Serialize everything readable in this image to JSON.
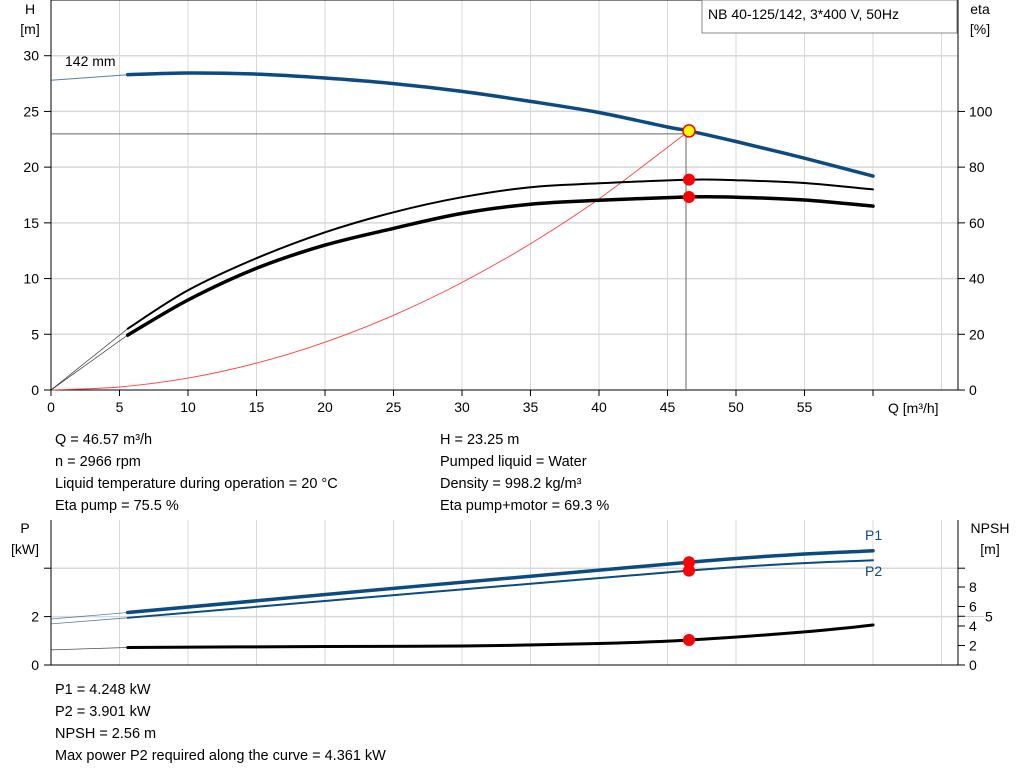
{
  "colors": {
    "head": "#0b4a82",
    "power": "#0b4a82",
    "eta": "#000000",
    "system": "#ff4040",
    "duty_marker": "#ff0000",
    "duty_head_marker": "#ffff00",
    "grid": "#d8d8d8"
  },
  "chart_data": [
    {
      "type": "line",
      "title": "NB 40-125/142, 3*400 V, 50Hz",
      "xlabel": "Q [m³/h]",
      "ylabel_left": [
        "H",
        "[m]"
      ],
      "ylabel_right": [
        "eta",
        "[%]"
      ],
      "xlim": [
        0,
        65
      ],
      "ylim_left": [
        0,
        35
      ],
      "ylim_right": [
        0,
        140
      ],
      "x_ticks": [
        0,
        5,
        10,
        15,
        20,
        25,
        30,
        35,
        40,
        45,
        50,
        55,
        60
      ],
      "x_tick_labels": [
        "0",
        "5",
        "10",
        "15",
        "20",
        "25",
        "30",
        "35",
        "40",
        "45",
        "50",
        "55",
        ""
      ],
      "y_left_ticks": [
        0,
        5,
        10,
        15,
        20,
        25,
        30
      ],
      "y_right_ticks": [
        0,
        20,
        40,
        60,
        80,
        100
      ],
      "grid": true,
      "curve_label": "142 mm",
      "series": [
        {
          "key": "H",
          "axis": "left",
          "x": [
            0,
            5.6,
            10,
            15,
            20,
            25,
            30,
            35,
            40,
            45,
            46.57,
            50,
            55,
            60
          ],
          "y": [
            27.8,
            28.3,
            28.45,
            28.35,
            28.0,
            27.5,
            26.8,
            25.9,
            24.9,
            23.6,
            23.25,
            22.3,
            20.8,
            19.2
          ]
        },
        {
          "key": "eta_pump",
          "axis": "right",
          "x": [
            0,
            5.6,
            10,
            15,
            20,
            25,
            30,
            35,
            40,
            46.57,
            50,
            55,
            60
          ],
          "y": [
            0,
            22,
            35.8,
            47.3,
            56.6,
            63.8,
            69.2,
            72.8,
            74.2,
            75.5,
            75.3,
            74.3,
            72
          ]
        },
        {
          "key": "eta_pump_motor",
          "axis": "right",
          "x": [
            0,
            5.6,
            10,
            15,
            20,
            25,
            30,
            35,
            40,
            46.57,
            50,
            55,
            60
          ],
          "y": [
            0,
            19.7,
            32.3,
            43.7,
            52,
            58,
            63.4,
            66.7,
            68.1,
            69.3,
            69.2,
            68.2,
            66
          ]
        },
        {
          "key": "system_curve",
          "axis": "left",
          "x": [
            0,
            5,
            10,
            15,
            20,
            25,
            30,
            35,
            40,
            46.57
          ],
          "y": [
            0,
            0.27,
            1.07,
            2.41,
            4.29,
            6.7,
            9.65,
            13.13,
            17.15,
            23.25
          ]
        }
      ],
      "duty_point": {
        "Q": 46.57,
        "H": 23.25,
        "eta_pump": 75.5,
        "eta_pump_motor": 69.3
      }
    },
    {
      "type": "line",
      "xlim": [
        0,
        65
      ],
      "ylabel_left": [
        "P",
        "[kW]"
      ],
      "ylabel_right": [
        "NPSH",
        "[m]"
      ],
      "ylim_left": [
        0,
        6
      ],
      "ylim_right": [
        0,
        15
      ],
      "y_left_ticks": [
        0,
        2,
        4
      ],
      "y_left_tick_labels": [
        "0",
        "2",
        ""
      ],
      "y_right_ticks": [
        0,
        2,
        4,
        5,
        6,
        8
      ],
      "grid": true,
      "series": [
        {
          "key": "P1",
          "name": "P1",
          "axis": "left",
          "x": [
            0,
            5.6,
            46.57,
            60
          ],
          "y": [
            1.9,
            2.17,
            4.248,
            4.72
          ]
        },
        {
          "key": "P2",
          "name": "P2",
          "axis": "left",
          "x": [
            0,
            5.6,
            46.57,
            60
          ],
          "y": [
            1.7,
            1.95,
            3.901,
            4.33
          ]
        },
        {
          "key": "NPSH",
          "axis": "right",
          "x": [
            0,
            5.6,
            20,
            30,
            40,
            46.57,
            55,
            60
          ],
          "y": [
            1.55,
            1.8,
            1.9,
            1.95,
            2.2,
            2.56,
            3.4,
            4.1
          ]
        }
      ],
      "duty_point": {
        "Q": 46.57,
        "P1": 4.248,
        "P2": 3.901,
        "NPSH": 2.56
      }
    }
  ],
  "info_top": {
    "left": [
      "Q = 46.57 m³/h",
      "n = 2966 rpm",
      "Liquid temperature during operation = 20 °C",
      "Eta pump = 75.5 %"
    ],
    "right": [
      "H = 23.25 m",
      "Pumped liquid = Water",
      "Density = 998.2 kg/m³",
      "Eta pump+motor = 69.3 %"
    ]
  },
  "info_bottom": [
    "P1 = 4.248 kW",
    "P2 = 3.901 kW",
    "NPSH = 2.56 m",
    "Max power P2 required along the curve = 4.361 kW"
  ]
}
